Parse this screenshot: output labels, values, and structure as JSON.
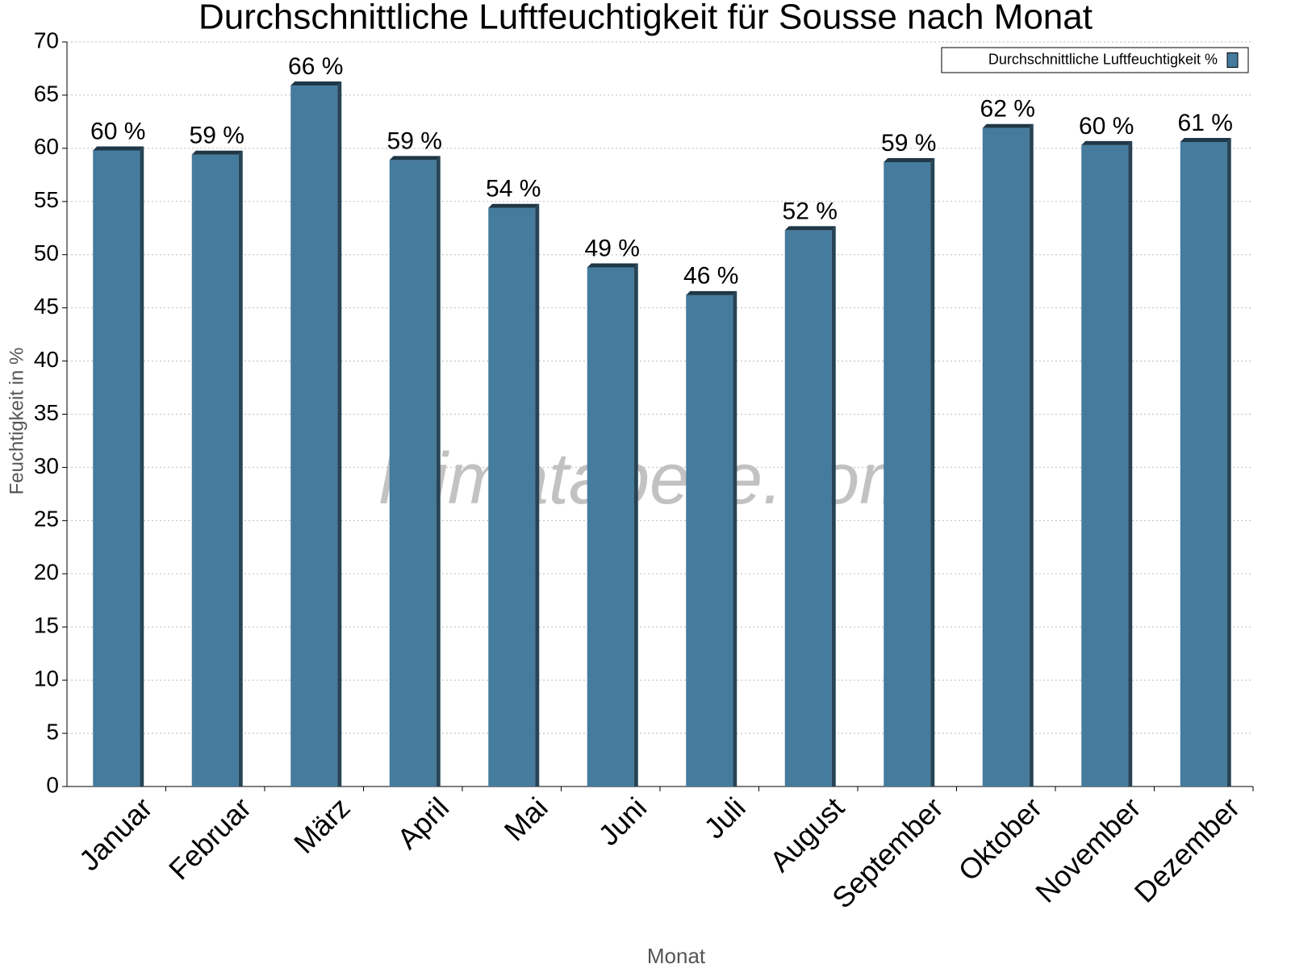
{
  "chart_data": {
    "type": "bar",
    "title": "Durchschnittliche Luftfeuchtigkeit für Sousse nach Monat",
    "x_label": "Monat",
    "y_label": "Feuchtigkeit in %",
    "watermark": "klimatabelle.com",
    "categories": [
      "Januar",
      "Februar",
      "März",
      "April",
      "Mai",
      "Juni",
      "Juli",
      "August",
      "September",
      "Oktober",
      "November",
      "Dezember"
    ],
    "series": [
      {
        "name": "Durchschnittliche Luftfeuchtigkeit %",
        "color": "#457b9d",
        "values": [
          59.8,
          59.4,
          65.9,
          58.9,
          54.4,
          48.8,
          46.2,
          52.3,
          58.7,
          61.9,
          60.3,
          60.6
        ],
        "value_labels": [
          "60 %",
          "59 %",
          "66 %",
          "59 %",
          "54 %",
          "49 %",
          "46 %",
          "52 %",
          "59 %",
          "62 %",
          "60 %",
          "61 %"
        ]
      }
    ],
    "ylim": [
      0,
      70
    ],
    "yticks": [
      0,
      5,
      10,
      15,
      20,
      25,
      30,
      35,
      40,
      45,
      50,
      55,
      60,
      65,
      70
    ],
    "grid": true,
    "legend": "upper right"
  }
}
